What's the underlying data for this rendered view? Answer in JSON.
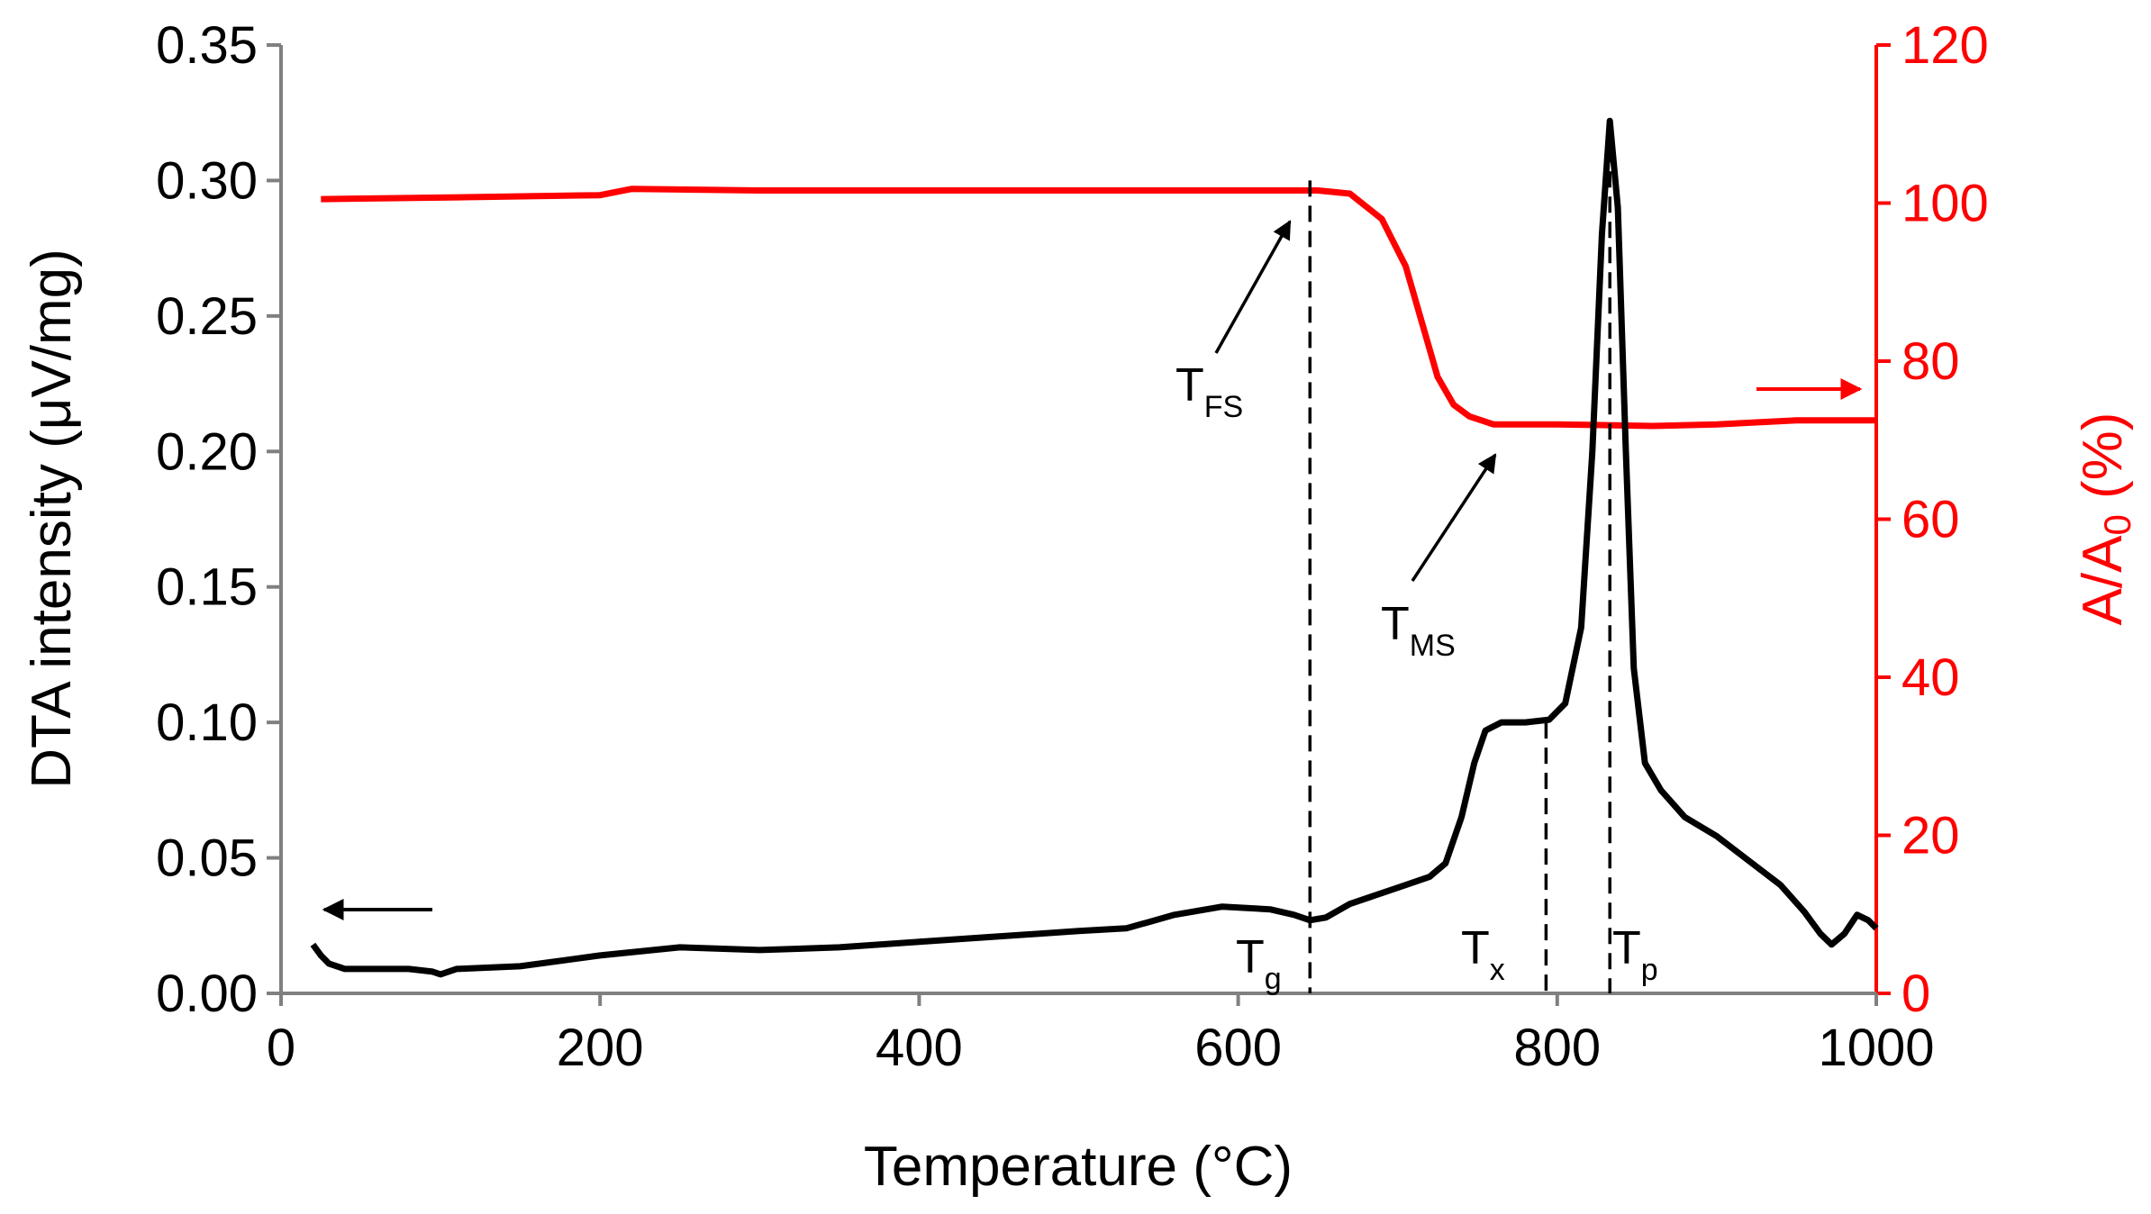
{
  "chart_data": {
    "type": "line",
    "x": {
      "label": "Temperature (°C)",
      "range": [
        0,
        1000
      ],
      "ticks": [
        0,
        200,
        400,
        600,
        800,
        1000
      ]
    },
    "y_left": {
      "label": "DTA intensity (μV/mg)",
      "range": [
        0,
        0.35
      ],
      "ticks": [
        "0.00",
        "0.05",
        "0.10",
        "0.15",
        "0.20",
        "0.25",
        "0.30",
        "0.35"
      ],
      "color": "#000000"
    },
    "y_right": {
      "label_main": "A/A",
      "label_sub": "0",
      "label_tail": " (%)",
      "range": [
        0,
        120
      ],
      "ticks": [
        "0",
        "20",
        "40",
        "60",
        "80",
        "100",
        "120"
      ],
      "color": "#ff0000"
    },
    "series": [
      {
        "name": "DTA",
        "axis": "left",
        "color": "#000000",
        "points": [
          [
            20,
            0.018
          ],
          [
            25,
            0.014
          ],
          [
            30,
            0.011
          ],
          [
            40,
            0.009
          ],
          [
            60,
            0.009
          ],
          [
            80,
            0.009
          ],
          [
            95,
            0.008
          ],
          [
            100,
            0.007
          ],
          [
            110,
            0.009
          ],
          [
            150,
            0.01
          ],
          [
            200,
            0.014
          ],
          [
            250,
            0.017
          ],
          [
            300,
            0.016
          ],
          [
            350,
            0.017
          ],
          [
            400,
            0.019
          ],
          [
            450,
            0.021
          ],
          [
            500,
            0.023
          ],
          [
            530,
            0.024
          ],
          [
            560,
            0.029
          ],
          [
            590,
            0.032
          ],
          [
            620,
            0.031
          ],
          [
            635,
            0.029
          ],
          [
            645,
            0.027
          ],
          [
            655,
            0.028
          ],
          [
            670,
            0.033
          ],
          [
            700,
            0.039
          ],
          [
            720,
            0.043
          ],
          [
            730,
            0.048
          ],
          [
            740,
            0.065
          ],
          [
            748,
            0.085
          ],
          [
            755,
            0.097
          ],
          [
            765,
            0.1
          ],
          [
            780,
            0.1
          ],
          [
            795,
            0.101
          ],
          [
            805,
            0.107
          ],
          [
            815,
            0.135
          ],
          [
            822,
            0.2
          ],
          [
            828,
            0.28
          ],
          [
            833,
            0.322
          ],
          [
            838,
            0.29
          ],
          [
            843,
            0.2
          ],
          [
            848,
            0.12
          ],
          [
            855,
            0.085
          ],
          [
            865,
            0.075
          ],
          [
            880,
            0.065
          ],
          [
            900,
            0.058
          ],
          [
            920,
            0.049
          ],
          [
            940,
            0.04
          ],
          [
            955,
            0.03
          ],
          [
            965,
            0.022
          ],
          [
            972,
            0.018
          ],
          [
            980,
            0.022
          ],
          [
            988,
            0.029
          ],
          [
            995,
            0.027
          ],
          [
            1000,
            0.024
          ]
        ]
      },
      {
        "name": "A/A0",
        "axis": "right",
        "color": "#ff0000",
        "points": [
          [
            25,
            100.5
          ],
          [
            100,
            100.7
          ],
          [
            200,
            101.0
          ],
          [
            220,
            101.8
          ],
          [
            300,
            101.6
          ],
          [
            400,
            101.6
          ],
          [
            500,
            101.6
          ],
          [
            600,
            101.6
          ],
          [
            650,
            101.6
          ],
          [
            670,
            101.2
          ],
          [
            690,
            98.0
          ],
          [
            705,
            92.0
          ],
          [
            715,
            85.0
          ],
          [
            725,
            78.0
          ],
          [
            735,
            74.5
          ],
          [
            745,
            73.0
          ],
          [
            760,
            72.0
          ],
          [
            800,
            72.0
          ],
          [
            860,
            71.8
          ],
          [
            900,
            72.0
          ],
          [
            950,
            72.5
          ],
          [
            1000,
            72.5
          ]
        ]
      }
    ],
    "markers": [
      {
        "id": "tg",
        "main": "T",
        "sub": "g",
        "x": 645,
        "y_top": 0.3
      },
      {
        "id": "tx",
        "main": "T",
        "sub": "x",
        "x": 793,
        "y_top": 0.1
      },
      {
        "id": "tp",
        "main": "T",
        "sub": "p",
        "x": 833,
        "y_top": 0.322
      }
    ],
    "annotations": [
      {
        "id": "tfs",
        "main": "T",
        "sub": "FS"
      },
      {
        "id": "tms",
        "main": "T",
        "sub": "MS"
      }
    ]
  }
}
